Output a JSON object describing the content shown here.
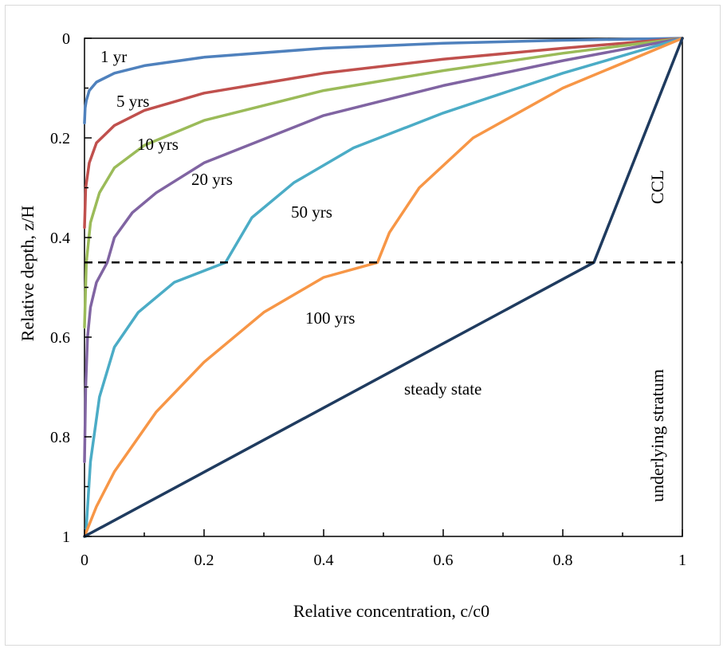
{
  "chart_data": {
    "type": "line",
    "xlabel": "Relative concentration, c/c0",
    "ylabel": "Relative depth, z/H",
    "xlim": [
      0,
      1
    ],
    "ylim": [
      0,
      1
    ],
    "y_inverted": true,
    "x_ticks": [
      "0",
      "0.2",
      "0.4",
      "0.6",
      "0.8",
      "1"
    ],
    "x_tick_values": [
      0,
      0.2,
      0.4,
      0.6,
      0.8,
      1
    ],
    "y_ticks": [
      "0",
      "0.2",
      "0.4",
      "0.6",
      "0.8",
      "1"
    ],
    "y_tick_values": [
      0,
      0.2,
      0.4,
      0.6,
      0.8,
      1
    ],
    "grid": false,
    "legend": "none",
    "interface_depth": 0.45,
    "annotations": {
      "upper_layer": "CCL",
      "lower_layer": "underlying stratum"
    },
    "series": [
      {
        "name": "1 yr",
        "color": "#4f81bd",
        "points": [
          [
            1,
            0
          ],
          [
            0.8,
            0.004
          ],
          [
            0.6,
            0.01
          ],
          [
            0.4,
            0.02
          ],
          [
            0.2,
            0.038
          ],
          [
            0.1,
            0.055
          ],
          [
            0.05,
            0.07
          ],
          [
            0.02,
            0.088
          ],
          [
            0.008,
            0.105
          ],
          [
            0.003,
            0.125
          ],
          [
            0.001,
            0.14
          ],
          [
            0,
            0.17
          ]
        ]
      },
      {
        "name": "5 yrs",
        "color": "#c0504d",
        "points": [
          [
            1,
            0
          ],
          [
            0.8,
            0.02
          ],
          [
            0.6,
            0.042
          ],
          [
            0.4,
            0.07
          ],
          [
            0.2,
            0.11
          ],
          [
            0.1,
            0.145
          ],
          [
            0.05,
            0.175
          ],
          [
            0.02,
            0.21
          ],
          [
            0.008,
            0.25
          ],
          [
            0.002,
            0.3
          ],
          [
            0,
            0.38
          ]
        ]
      },
      {
        "name": "10 yrs",
        "color": "#9bbb59",
        "points": [
          [
            1,
            0
          ],
          [
            0.8,
            0.03
          ],
          [
            0.6,
            0.065
          ],
          [
            0.4,
            0.105
          ],
          [
            0.2,
            0.165
          ],
          [
            0.1,
            0.215
          ],
          [
            0.05,
            0.26
          ],
          [
            0.025,
            0.31
          ],
          [
            0.01,
            0.37
          ],
          [
            0.003,
            0.45
          ],
          [
            0,
            0.58
          ]
        ]
      },
      {
        "name": "20 yrs",
        "color": "#8064a2",
        "points": [
          [
            1,
            0
          ],
          [
            0.8,
            0.045
          ],
          [
            0.6,
            0.095
          ],
          [
            0.4,
            0.155
          ],
          [
            0.2,
            0.25
          ],
          [
            0.12,
            0.31
          ],
          [
            0.08,
            0.35
          ],
          [
            0.05,
            0.4
          ],
          [
            0.038,
            0.45
          ],
          [
            0.02,
            0.49
          ],
          [
            0.01,
            0.54
          ],
          [
            0.005,
            0.6
          ],
          [
            0.002,
            0.7
          ],
          [
            0,
            0.85
          ]
        ]
      },
      {
        "name": "50 yrs",
        "color": "#4bacc6",
        "points": [
          [
            1,
            0
          ],
          [
            0.8,
            0.07
          ],
          [
            0.6,
            0.15
          ],
          [
            0.45,
            0.22
          ],
          [
            0.35,
            0.29
          ],
          [
            0.28,
            0.36
          ],
          [
            0.236,
            0.45
          ],
          [
            0.15,
            0.49
          ],
          [
            0.09,
            0.55
          ],
          [
            0.05,
            0.62
          ],
          [
            0.025,
            0.72
          ],
          [
            0.01,
            0.85
          ],
          [
            0.002,
            1
          ]
        ]
      },
      {
        "name": "100 yrs",
        "color": "#f79646",
        "points": [
          [
            1,
            0
          ],
          [
            0.8,
            0.1
          ],
          [
            0.65,
            0.2
          ],
          [
            0.56,
            0.3
          ],
          [
            0.51,
            0.39
          ],
          [
            0.49,
            0.45
          ],
          [
            0.4,
            0.48
          ],
          [
            0.3,
            0.55
          ],
          [
            0.2,
            0.65
          ],
          [
            0.12,
            0.75
          ],
          [
            0.05,
            0.87
          ],
          [
            0.02,
            0.94
          ],
          [
            0,
            1
          ]
        ]
      },
      {
        "name": "steady state",
        "color": "#1f3b5f",
        "points": [
          [
            1,
            0
          ],
          [
            0.852,
            0.45
          ],
          [
            0,
            1
          ]
        ]
      }
    ]
  }
}
